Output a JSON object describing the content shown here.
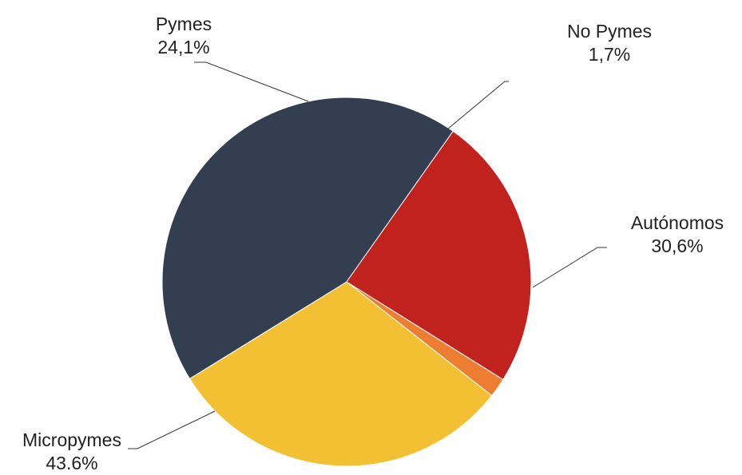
{
  "chart_data": {
    "type": "pie",
    "slices": [
      {
        "label": "No Pymes",
        "value": 1.7,
        "value_label": "1,7%",
        "color": "#ED7D31"
      },
      {
        "label": "Autónomos",
        "value": 30.6,
        "value_label": "30,6%",
        "color": "#F4C033"
      },
      {
        "label": "Micropymes",
        "value": 43.6,
        "value_label": "43.6%",
        "color": "#333F50"
      },
      {
        "label": "Pymes",
        "value": 24.1,
        "value_label": "24,1%",
        "color": "#C0221E"
      }
    ],
    "legend": "none"
  }
}
